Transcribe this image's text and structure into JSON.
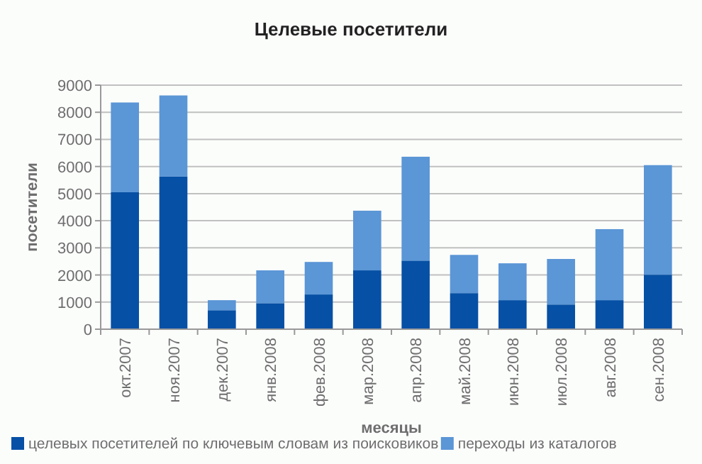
{
  "chart_data": {
    "type": "bar",
    "title": "Целевые посетители",
    "xlabel": "месяцы",
    "ylabel": "посетители",
    "categories": [
      "окт.2007",
      "ноя.2007",
      "дек.2007",
      "янв.2008",
      "фев.2008",
      "мар.2008",
      "апр.2008",
      "май.2008",
      "июн.2008",
      "июл.2008",
      "авг.2008",
      "сен.2008"
    ],
    "series": [
      {
        "name": "целевых посетителей по ключевым словам из поисковиков",
        "color": "#0650a5",
        "values": [
          5050,
          5630,
          700,
          960,
          1280,
          2170,
          2530,
          1330,
          1070,
          910,
          1070,
          2010
        ]
      },
      {
        "name": "переходы из каталогов",
        "color": "#5b96d6",
        "values": [
          3310,
          2990,
          370,
          1210,
          1200,
          2200,
          3830,
          1410,
          1360,
          1680,
          2620,
          4040
        ]
      }
    ],
    "stacked": true,
    "ylim": [
      0,
      9000
    ],
    "yticks": [
      0,
      1000,
      2000,
      3000,
      4000,
      5000,
      6000,
      7000,
      8000,
      9000
    ],
    "grid": "y",
    "legend": "bottom"
  }
}
